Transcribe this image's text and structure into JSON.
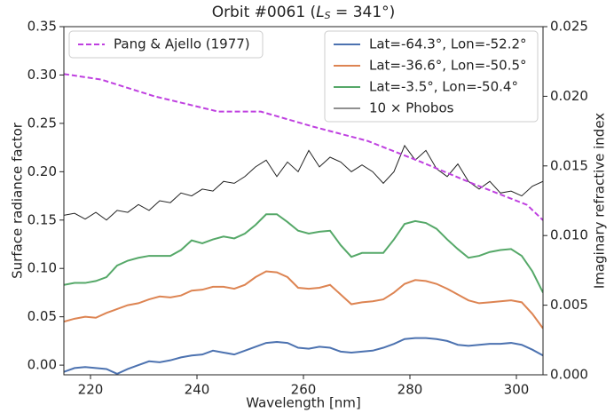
{
  "chart_data": {
    "type": "line",
    "title": [
      "Orbit #0061 (",
      "L",
      "S",
      " = 341°)"
    ],
    "xlabel": "Wavelength [nm]",
    "ylabel": "Surface radiance factor",
    "y2label": "Imaginary refractive index",
    "xlim": [
      215,
      305
    ],
    "xticks": [
      220,
      240,
      260,
      280,
      300
    ],
    "ylim": [
      -0.01,
      0.35
    ],
    "yticks": [
      {
        "value": 0,
        "label": "0.00"
      },
      0.05,
      {
        "value": 0.1,
        "label": "0.10"
      },
      0.15,
      {
        "value": 0.2,
        "label": "0.20"
      },
      0.25,
      {
        "value": 0.3,
        "label": "0.30"
      },
      0.35
    ],
    "y2lim": [
      0,
      0.025
    ],
    "y2ticks": [
      {
        "value": 0,
        "label": "0.000"
      },
      0.005,
      {
        "value": 0.01,
        "label": "0.010"
      },
      0.015,
      {
        "value": 0.02,
        "label": "0.020"
      },
      0.025
    ],
    "series": [
      {
        "name": "Lat=-64.3°, Lon=-52.2°",
        "color": "#4c72b0",
        "legend": "upper right",
        "x": [
          215,
          217,
          219,
          221,
          223,
          225,
          227,
          229,
          231,
          233,
          235,
          237,
          239,
          241,
          243,
          245,
          247,
          249,
          251,
          253,
          255,
          257,
          259,
          261,
          263,
          265,
          267,
          269,
          271,
          273,
          275,
          277,
          279,
          281,
          283,
          285,
          287,
          289,
          291,
          293,
          295,
          297,
          299,
          301,
          303,
          305
        ],
        "values": [
          -0.007,
          -0.003,
          -0.002,
          -0.003,
          -0.004,
          -0.009,
          -0.004,
          0.0,
          0.004,
          0.003,
          0.005,
          0.008,
          0.01,
          0.011,
          0.015,
          0.013,
          0.011,
          0.015,
          0.019,
          0.023,
          0.024,
          0.023,
          0.018,
          0.017,
          0.019,
          0.018,
          0.014,
          0.013,
          0.014,
          0.015,
          0.018,
          0.022,
          0.027,
          0.028,
          0.028,
          0.027,
          0.025,
          0.021,
          0.02,
          0.021,
          0.022,
          0.022,
          0.023,
          0.021,
          0.016,
          0.01
        ]
      },
      {
        "name": "Lat=-36.6°, Lon=-50.5°",
        "color": "#dd8452",
        "legend": "upper right",
        "x": [
          215,
          217,
          219,
          221,
          223,
          225,
          227,
          229,
          231,
          233,
          235,
          237,
          239,
          241,
          243,
          245,
          247,
          249,
          251,
          253,
          255,
          257,
          259,
          261,
          263,
          265,
          267,
          269,
          271,
          273,
          275,
          277,
          279,
          281,
          283,
          285,
          287,
          289,
          291,
          293,
          295,
          297,
          299,
          301,
          303,
          305
        ],
        "values": [
          0.045,
          0.048,
          0.05,
          0.049,
          0.054,
          0.058,
          0.062,
          0.064,
          0.068,
          0.071,
          0.07,
          0.072,
          0.077,
          0.078,
          0.081,
          0.081,
          0.079,
          0.083,
          0.091,
          0.097,
          0.096,
          0.091,
          0.08,
          0.079,
          0.08,
          0.083,
          0.073,
          0.063,
          0.065,
          0.066,
          0.068,
          0.075,
          0.084,
          0.088,
          0.087,
          0.084,
          0.079,
          0.073,
          0.067,
          0.064,
          0.065,
          0.066,
          0.067,
          0.065,
          0.053,
          0.038
        ]
      },
      {
        "name": "Lat=-3.5°, Lon=-50.4°",
        "color": "#55a868",
        "legend": "upper right",
        "x": [
          215,
          217,
          219,
          221,
          223,
          225,
          227,
          229,
          231,
          233,
          235,
          237,
          239,
          241,
          243,
          245,
          247,
          249,
          251,
          253,
          255,
          257,
          259,
          261,
          263,
          265,
          267,
          269,
          271,
          273,
          275,
          277,
          279,
          281,
          283,
          285,
          287,
          289,
          291,
          293,
          295,
          297,
          299,
          301,
          303,
          305
        ],
        "values": [
          0.083,
          0.085,
          0.085,
          0.087,
          0.091,
          0.103,
          0.108,
          0.111,
          0.113,
          0.113,
          0.113,
          0.119,
          0.129,
          0.126,
          0.13,
          0.133,
          0.131,
          0.136,
          0.145,
          0.156,
          0.156,
          0.148,
          0.139,
          0.136,
          0.138,
          0.139,
          0.124,
          0.112,
          0.116,
          0.116,
          0.116,
          0.13,
          0.146,
          0.149,
          0.147,
          0.141,
          0.13,
          0.12,
          0.111,
          0.113,
          0.117,
          0.119,
          0.12,
          0.113,
          0.097,
          0.075
        ]
      },
      {
        "name": "10 × Phobos",
        "color": "#222222",
        "legend": "upper right",
        "width": 1,
        "x": [
          215,
          217,
          219,
          221,
          223,
          225,
          227,
          229,
          231,
          233,
          235,
          237,
          239,
          241,
          243,
          245,
          247,
          249,
          251,
          253,
          255,
          257,
          259,
          261,
          263,
          265,
          267,
          269,
          271,
          273,
          275,
          277,
          279,
          281,
          283,
          285,
          287,
          289,
          291,
          293,
          295,
          297,
          299,
          301,
          303,
          305
        ],
        "values": [
          0.155,
          0.157,
          0.151,
          0.158,
          0.15,
          0.16,
          0.158,
          0.166,
          0.16,
          0.17,
          0.168,
          0.178,
          0.175,
          0.182,
          0.18,
          0.19,
          0.188,
          0.195,
          0.205,
          0.212,
          0.195,
          0.21,
          0.2,
          0.222,
          0.205,
          0.215,
          0.21,
          0.2,
          0.207,
          0.2,
          0.188,
          0.2,
          0.227,
          0.212,
          0.222,
          0.203,
          0.195,
          0.208,
          0.19,
          0.182,
          0.19,
          0.178,
          0.18,
          0.175,
          0.185,
          0.19
        ]
      },
      {
        "name": "Pang & Ajello (1977)",
        "color": "#bf40e0",
        "legend": "upper left",
        "axis": "y2",
        "dashed": true,
        "x": [
          215,
          222,
          232,
          244,
          252,
          262,
          272,
          282,
          292,
          302,
          305
        ],
        "values": [
          0.0216,
          0.0212,
          0.02,
          0.0189,
          0.0189,
          0.0178,
          0.0168,
          0.0153,
          0.0137,
          0.0122,
          0.0111
        ]
      }
    ]
  }
}
